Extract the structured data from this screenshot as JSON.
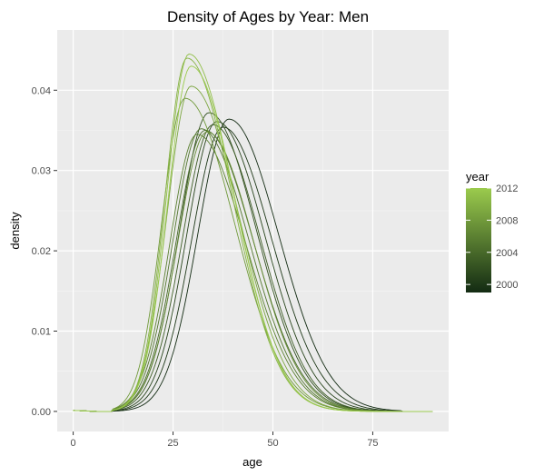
{
  "chart_data": {
    "type": "line",
    "title": "Density of Ages by Year: Men",
    "xlabel": "age",
    "ylabel": "density",
    "xlim": [
      -4,
      94
    ],
    "ylim": [
      -0.0025,
      0.0475
    ],
    "x_ticks": [
      0,
      25,
      50,
      75
    ],
    "y_ticks": [
      0.0,
      0.01,
      0.02,
      0.03,
      0.04
    ],
    "y_tick_labels": [
      "0.00",
      "0.01",
      "0.02",
      "0.03",
      "0.04"
    ],
    "grid": true,
    "legend": {
      "title": "year",
      "placement": "right",
      "labels": [
        "2012",
        "2008",
        "2004",
        "2000"
      ],
      "range": [
        1999,
        2012
      ],
      "low_color": "#132b13",
      "high_color": "#9bcb4d"
    },
    "series": [
      {
        "year": 1999,
        "peak_age": 39,
        "peak": 0.0364,
        "sd_left": 7.8,
        "sd_right": 12.4
      },
      {
        "year": 2000,
        "peak_age": 37.5,
        "peak": 0.0354,
        "sd_left": 7.8,
        "sd_right": 12.2
      },
      {
        "year": 2001,
        "peak_age": 36,
        "peak": 0.0361,
        "sd_left": 7.6,
        "sd_right": 12.0
      },
      {
        "year": 2002,
        "peak_age": 34,
        "peak": 0.0372,
        "sd_left": 7.4,
        "sd_right": 11.9
      },
      {
        "year": 2003,
        "peak_age": 35,
        "peak": 0.0357,
        "sd_left": 7.6,
        "sd_right": 11.8
      },
      {
        "year": 2004,
        "peak_age": 33,
        "peak": 0.035,
        "sd_left": 7.2,
        "sd_right": 12.1
      },
      {
        "year": 2005,
        "peak_age": 32,
        "peak": 0.0352,
        "sd_left": 7.0,
        "sd_right": 12.0
      },
      {
        "year": 2006,
        "peak_age": 31,
        "peak": 0.0345,
        "sd_left": 6.8,
        "sd_right": 12.2
      },
      {
        "year": 2007,
        "peak_age": 33.5,
        "peak": 0.0348,
        "sd_left": 7.3,
        "sd_right": 11.7
      },
      {
        "year": 2008,
        "peak_age": 28,
        "peak": 0.039,
        "sd_left": 5.8,
        "sd_right": 12.3
      },
      {
        "year": 2009,
        "peak_age": 29.5,
        "peak": 0.0405,
        "sd_left": 6.0,
        "sd_right": 11.9
      },
      {
        "year": 2010,
        "peak_age": 28.5,
        "peak": 0.044,
        "sd_left": 5.5,
        "sd_right": 11.4
      },
      {
        "year": 2011,
        "peak_age": 29,
        "peak": 0.0445,
        "sd_left": 5.6,
        "sd_right": 11.3
      },
      {
        "year": 2012,
        "peak_age": 29.5,
        "peak": 0.043,
        "sd_left": 5.8,
        "sd_right": 11.1
      }
    ]
  }
}
